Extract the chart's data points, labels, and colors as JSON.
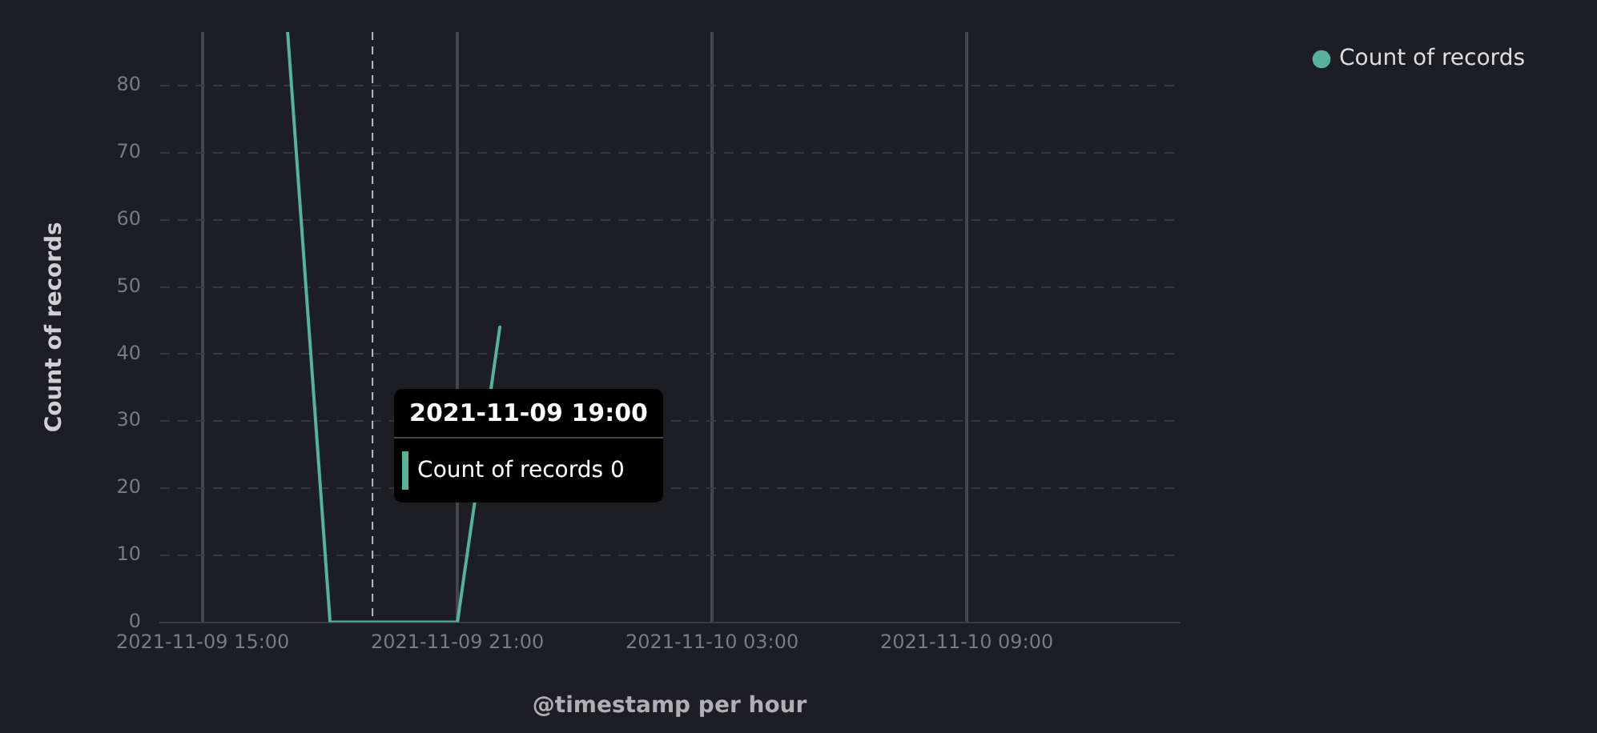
{
  "chart_data": {
    "type": "line",
    "xlabel": "@timestamp per hour",
    "ylabel": "Count of records",
    "x": [
      "2021-11-09T17:00",
      "2021-11-09T18:00",
      "2021-11-09T19:00",
      "2021-11-09T20:00",
      "2021-11-09T21:00",
      "2021-11-09T22:00"
    ],
    "series": [
      {
        "name": "Count of records",
        "color": "#54b399",
        "values": [
          88,
          0,
          0,
          0,
          0,
          44
        ]
      }
    ],
    "xlim": [
      "2021-11-09T14:00",
      "2021-11-10T14:00"
    ],
    "xticks": [
      {
        "value": "2021-11-09T15:00",
        "label": "2021-11-09 15:00"
      },
      {
        "value": "2021-11-09T21:00",
        "label": "2021-11-09 21:00"
      },
      {
        "value": "2021-11-10T03:00",
        "label": "2021-11-10 03:00"
      },
      {
        "value": "2021-11-10T09:00",
        "label": "2021-11-10 09:00"
      }
    ],
    "ylim": [
      0,
      88
    ],
    "yticks": [
      0,
      10,
      20,
      30,
      40,
      50,
      60,
      70,
      80
    ],
    "ref_lines": [
      {
        "axis": "x",
        "value": "2021-11-09T19:00",
        "color": "#bbbbbb",
        "line_style": "dashed"
      }
    ],
    "annotations": [
      "2021-11-09 19:00",
      "Count of records 0"
    ],
    "grid": true,
    "legend": "top right",
    "marker": "none",
    "line_style": "solid"
  }
}
